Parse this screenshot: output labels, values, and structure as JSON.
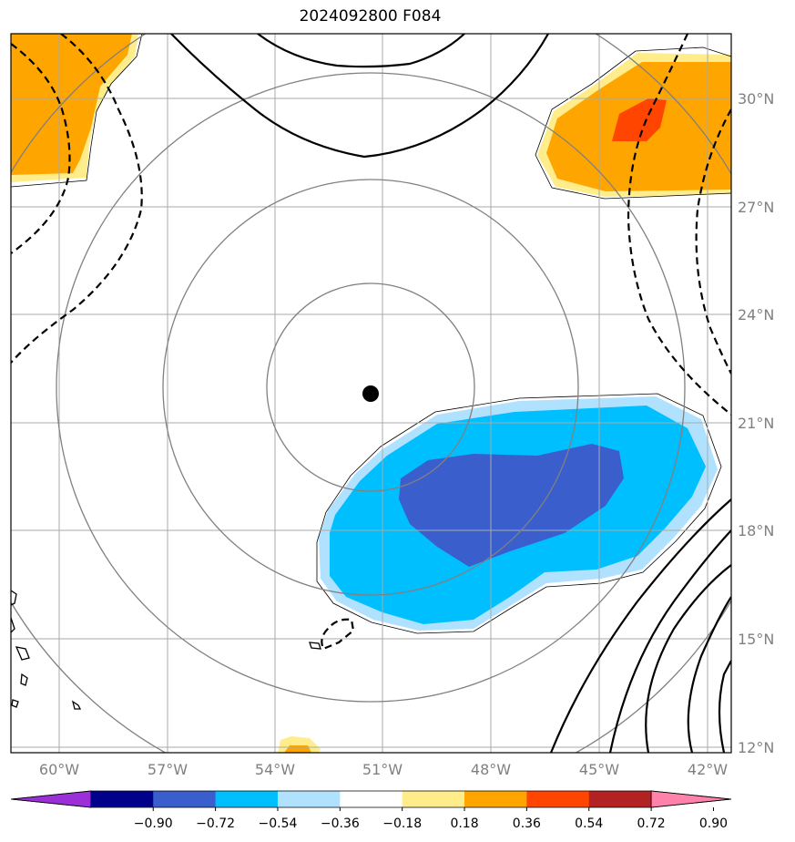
{
  "title": "2024092800 F084",
  "lon_labels": [
    "60°W",
    "57°W",
    "54°W",
    "51°W",
    "48°W",
    "45°W",
    "42°W"
  ],
  "lat_labels": [
    "30°N",
    "27°N",
    "24°N",
    "21°N",
    "18°N",
    "15°N",
    "12°N"
  ],
  "colorbar": {
    "ticks": [
      "−0.90",
      "−0.72",
      "−0.54",
      "−0.36",
      "−0.18",
      "0.18",
      "0.36",
      "0.54",
      "0.72",
      "0.90"
    ],
    "colors": [
      "#9b30d9",
      "#00008b",
      "#3a5fcd",
      "#00bfff",
      "#b0e2ff",
      "#ffffff",
      "#ffec8b",
      "#ffa500",
      "#ff4500",
      "#b22222",
      "#ff82ab"
    ]
  },
  "fill_colors": {
    "orange": "#ffa500",
    "yellow": "#ffec8b",
    "red": "#ff4500",
    "light_blue": "#b0e2ff",
    "sky_blue": "#00bfff",
    "royal_blue": "#3a5fcd"
  },
  "storm_center": {
    "lon": "51.3°W",
    "lat": "21.8°N"
  }
}
